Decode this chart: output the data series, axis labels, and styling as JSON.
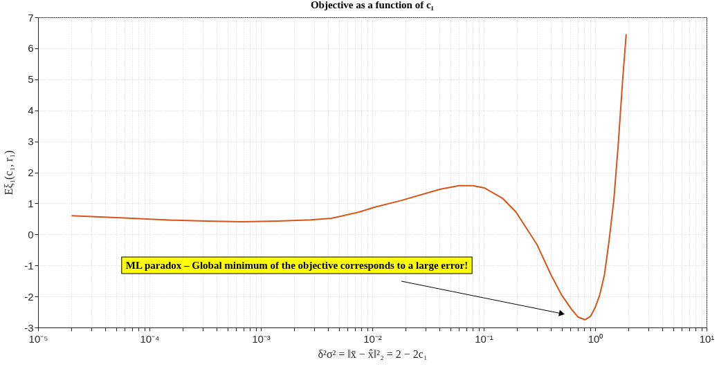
{
  "chart_data": {
    "type": "line",
    "title": "Objective as a function of c₁",
    "xlabel": "δ²σ² = ‖x̄ − x̂‖²₂ = 2 − 2c₁",
    "ylabel": "Eξ₁(c₁, r₁)",
    "log": "x",
    "grid": true,
    "xlim": [
      1e-05,
      10
    ],
    "ylim": [
      -3,
      7
    ],
    "xticks": [
      {
        "value": 1e-05,
        "label": "10⁻⁵"
      },
      {
        "value": 2e-05,
        "label": null
      },
      {
        "value": 3e-05,
        "label": null
      },
      {
        "value": 4e-05,
        "label": null
      },
      {
        "value": 5e-05,
        "label": null
      },
      {
        "value": 6e-05,
        "label": null
      },
      {
        "value": 7e-05,
        "label": null
      },
      {
        "value": 8e-05,
        "label": null
      },
      {
        "value": 9e-05,
        "label": null
      },
      {
        "value": 0.0001,
        "label": "10⁻⁴"
      },
      {
        "value": 0.0002,
        "label": null
      },
      {
        "value": 0.0003,
        "label": null
      },
      {
        "value": 0.0004,
        "label": null
      },
      {
        "value": 0.0005,
        "label": null
      },
      {
        "value": 0.0006,
        "label": null
      },
      {
        "value": 0.0007,
        "label": null
      },
      {
        "value": 0.0008,
        "label": null
      },
      {
        "value": 0.0009,
        "label": null
      },
      {
        "value": 0.001,
        "label": "10⁻³"
      },
      {
        "value": 0.002,
        "label": null
      },
      {
        "value": 0.003,
        "label": null
      },
      {
        "value": 0.004,
        "label": null
      },
      {
        "value": 0.005,
        "label": null
      },
      {
        "value": 0.006,
        "label": null
      },
      {
        "value": 0.007,
        "label": null
      },
      {
        "value": 0.008,
        "label": null
      },
      {
        "value": 0.009,
        "label": null
      },
      {
        "value": 0.01,
        "label": "10⁻²"
      },
      {
        "value": 0.02,
        "label": null
      },
      {
        "value": 0.03,
        "label": null
      },
      {
        "value": 0.04,
        "label": null
      },
      {
        "value": 0.05,
        "label": null
      },
      {
        "value": 0.06,
        "label": null
      },
      {
        "value": 0.07,
        "label": null
      },
      {
        "value": 0.08,
        "label": null
      },
      {
        "value": 0.09,
        "label": null
      },
      {
        "value": 0.1,
        "label": "10⁻¹"
      },
      {
        "value": 0.2,
        "label": null
      },
      {
        "value": 0.3,
        "label": null
      },
      {
        "value": 0.4,
        "label": null
      },
      {
        "value": 0.5,
        "label": null
      },
      {
        "value": 0.6,
        "label": null
      },
      {
        "value": 0.7,
        "label": null
      },
      {
        "value": 0.8,
        "label": null
      },
      {
        "value": 0.9,
        "label": null
      },
      {
        "value": 1,
        "label": "10⁰"
      },
      {
        "value": 2,
        "label": null
      },
      {
        "value": 3,
        "label": null
      },
      {
        "value": 4,
        "label": null
      },
      {
        "value": 5,
        "label": null
      },
      {
        "value": 6,
        "label": null
      },
      {
        "value": 7,
        "label": null
      },
      {
        "value": 8,
        "label": null
      },
      {
        "value": 9,
        "label": null
      },
      {
        "value": 10,
        "label": "10¹"
      }
    ],
    "yticks": [
      -3,
      -2,
      -1,
      0,
      1,
      2,
      3,
      4,
      5,
      6,
      7
    ],
    "x": [
      2e-05,
      6e-05,
      0.00016,
      0.00033,
      0.00068,
      0.0014,
      0.0028,
      0.0043,
      0.0076,
      0.0103,
      0.018,
      0.041,
      0.06,
      0.08,
      0.101,
      0.148,
      0.195,
      0.3,
      0.4,
      0.5,
      0.61,
      0.7,
      0.81,
      0.91,
      1.0,
      1.1,
      1.21,
      1.33,
      1.47,
      1.61,
      1.77,
      1.9
    ],
    "series": [
      {
        "color": "#d95319",
        "values": [
          0.6,
          0.53,
          0.46,
          0.43,
          0.41,
          0.43,
          0.47,
          0.52,
          0.72,
          0.87,
          1.09,
          1.46,
          1.57,
          1.57,
          1.5,
          1.16,
          0.72,
          -0.32,
          -1.29,
          -1.95,
          -2.4,
          -2.66,
          -2.75,
          -2.64,
          -2.36,
          -1.95,
          -1.32,
          -0.24,
          1.09,
          2.87,
          5.03,
          6.45
        ]
      }
    ],
    "annotations": [
      "ML paradox – Global minimum of the objective corresponds to a large error!"
    ]
  }
}
